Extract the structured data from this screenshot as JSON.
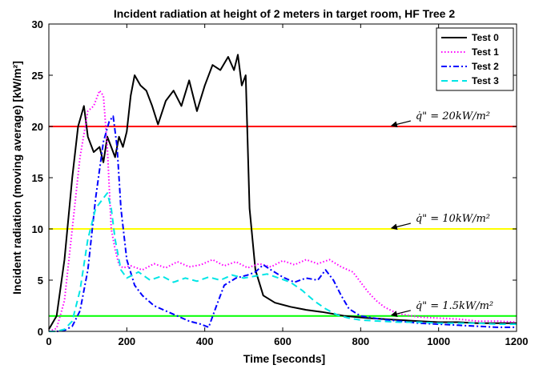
{
  "chart_data": {
    "type": "line",
    "title": "Incident radiation at height of 2 meters in target room, HF Tree 2",
    "xlabel": "Time [seconds]",
    "ylabel": "Incident radiation (moving average) [kW/m²]",
    "xlim": [
      0,
      1200
    ],
    "ylim": [
      0,
      30
    ],
    "xticks": [
      0,
      200,
      400,
      600,
      800,
      1000,
      1200
    ],
    "yticks": [
      0,
      5,
      10,
      15,
      20,
      25,
      30
    ],
    "grid": false,
    "legend_position": "top-right",
    "series": [
      {
        "name": "Test 0",
        "color": "#000000",
        "style": "solid",
        "x": [
          0,
          20,
          40,
          60,
          75,
          90,
          100,
          115,
          130,
          140,
          150,
          160,
          170,
          180,
          190,
          200,
          210,
          220,
          235,
          250,
          265,
          280,
          300,
          320,
          340,
          360,
          380,
          400,
          420,
          440,
          460,
          475,
          485,
          495,
          505,
          515,
          530,
          550,
          580,
          620,
          660,
          700,
          730,
          760,
          790,
          820,
          860,
          900,
          950,
          1000,
          1050,
          1100,
          1150,
          1200
        ],
        "y": [
          0.2,
          1.5,
          7,
          15,
          20,
          22,
          19,
          17.5,
          18,
          16.5,
          19,
          18,
          17,
          19,
          18,
          19.5,
          23,
          25,
          24,
          23.5,
          22,
          20.2,
          22.5,
          23.5,
          22,
          24.5,
          21.5,
          24,
          26,
          25.5,
          26.8,
          25.5,
          27,
          24,
          25,
          12,
          6,
          3.5,
          2.8,
          2.4,
          2.1,
          1.9,
          1.7,
          1.5,
          1.4,
          1.3,
          1.2,
          1.1,
          1,
          0.9,
          0.9,
          0.8,
          0.8,
          0.8
        ]
      },
      {
        "name": "Test 1",
        "color": "#ff00ff",
        "style": "dotted",
        "x": [
          0,
          20,
          40,
          60,
          80,
          100,
          115,
          130,
          140,
          150,
          160,
          170,
          180,
          190,
          210,
          240,
          270,
          300,
          330,
          360,
          390,
          420,
          450,
          480,
          510,
          540,
          570,
          600,
          630,
          660,
          690,
          720,
          750,
          780,
          800,
          820,
          840,
          860,
          880,
          900,
          950,
          1000,
          1050,
          1100,
          1150,
          1200
        ],
        "y": [
          0,
          0.3,
          3,
          10,
          17,
          21.5,
          22,
          23.5,
          23,
          18,
          10,
          8,
          6.5,
          6.2,
          6.4,
          6,
          6.6,
          6.2,
          6.8,
          6.3,
          6.5,
          7,
          6.4,
          6.8,
          6.2,
          6.6,
          6.3,
          6.9,
          6.5,
          7,
          6.6,
          7,
          6.3,
          5.8,
          4.8,
          3.8,
          3,
          2.4,
          2,
          1.7,
          1.4,
          1.3,
          1.2,
          1,
          1,
          0.9
        ]
      },
      {
        "name": "Test 2",
        "color": "#0000ff",
        "style": "dashdot",
        "x": [
          0,
          20,
          40,
          60,
          80,
          100,
          120,
          140,
          155,
          165,
          175,
          185,
          200,
          220,
          240,
          270,
          300,
          330,
          360,
          390,
          410,
          430,
          450,
          480,
          510,
          530,
          550,
          570,
          600,
          630,
          660,
          690,
          710,
          730,
          750,
          770,
          800,
          850,
          900,
          950,
          1000,
          1050,
          1100,
          1150,
          1200
        ],
        "y": [
          0,
          0,
          0.1,
          0.5,
          2,
          6,
          13,
          18.5,
          20.5,
          21,
          18,
          12,
          7,
          4.5,
          3.5,
          2.5,
          2,
          1.5,
          1,
          0.7,
          0.4,
          2.5,
          4.5,
          5.2,
          5.5,
          5.8,
          6.5,
          6,
          5.3,
          4.8,
          5.2,
          5,
          6,
          5,
          3.5,
          2.2,
          1.5,
          1.2,
          1,
          0.8,
          0.7,
          0.6,
          0.5,
          0.4,
          0.4
        ]
      },
      {
        "name": "Test 3",
        "color": "#00e5e5",
        "style": "dashed",
        "x": [
          0,
          20,
          40,
          60,
          80,
          100,
          120,
          140,
          150,
          160,
          170,
          185,
          200,
          230,
          260,
          290,
          320,
          350,
          380,
          410,
          440,
          470,
          500,
          530,
          560,
          590,
          620,
          650,
          680,
          710,
          740,
          770,
          800,
          850,
          900,
          950,
          1000,
          1050,
          1100,
          1150,
          1200
        ],
        "y": [
          0,
          0,
          0.2,
          1,
          4,
          9,
          12,
          13,
          13.5,
          12,
          9,
          6,
          5.2,
          5.8,
          5,
          5.4,
          4.8,
          5.2,
          4.9,
          5.3,
          5,
          5.5,
          5.2,
          5.4,
          5.6,
          5.2,
          4.8,
          4,
          3,
          2.2,
          1.6,
          1.3,
          1.1,
          1,
          0.9,
          0.9,
          0.8,
          0.8,
          0.8,
          0.7,
          0.7
        ]
      }
    ],
    "reference_lines": [
      {
        "y": 20,
        "color": "#ff0000",
        "label": "q̇\" = 20kW/m²"
      },
      {
        "y": 10,
        "color": "#ffff00",
        "label": "q̇\" = 10kW/m²"
      },
      {
        "y": 1.5,
        "color": "#00ff00",
        "label": "q̇\" = 1.5kW/m²"
      }
    ],
    "annotations": [
      {
        "text": "q̇\" = 20kW/m²",
        "arrow_to": [
          875,
          20
        ]
      },
      {
        "text": "q̇\" = 10kW/m²",
        "arrow_to": [
          875,
          10
        ]
      },
      {
        "text": "q̇\" = 1.5kW/m²",
        "arrow_to": [
          875,
          1.5
        ]
      }
    ]
  }
}
